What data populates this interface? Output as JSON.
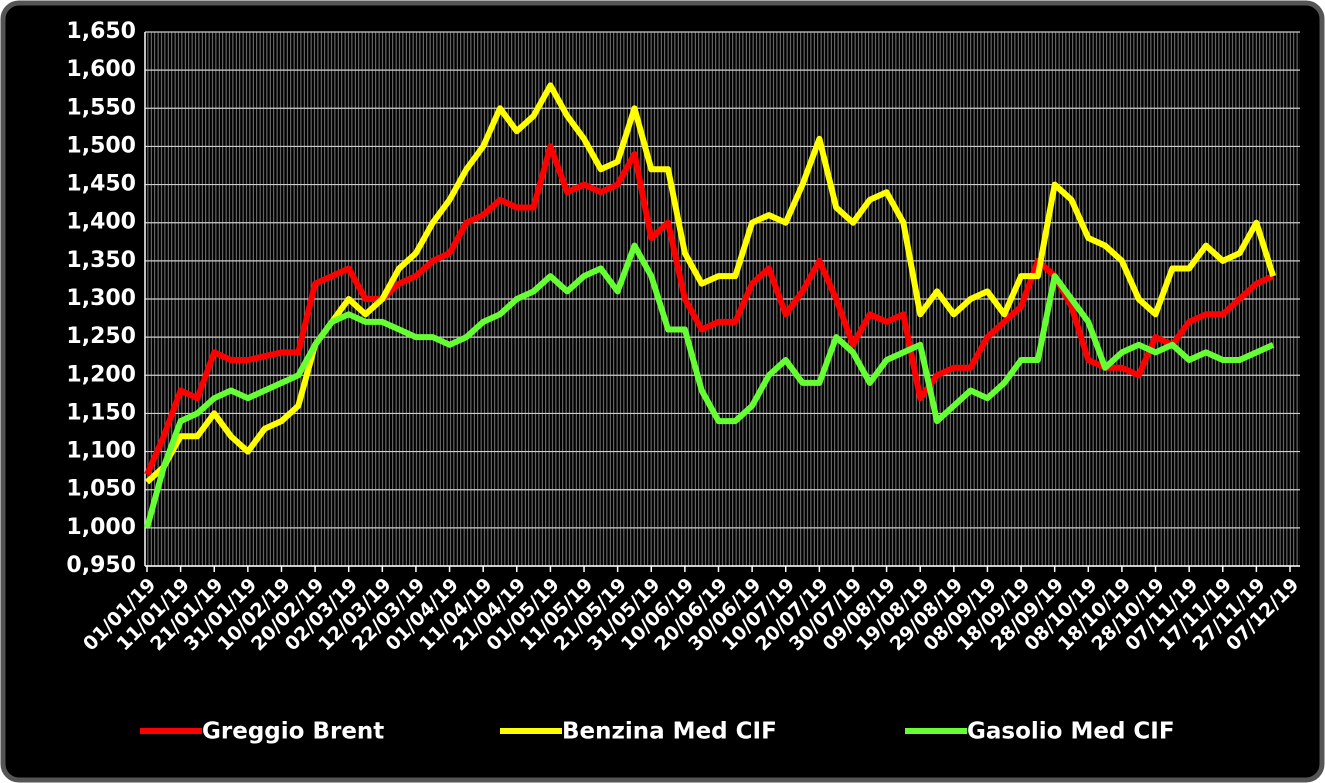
{
  "chart_data": {
    "type": "line",
    "categories": [
      "01/01/19",
      null,
      "11/01/19",
      null,
      "21/01/19",
      null,
      "31/01/19",
      null,
      "10/02/19",
      null,
      "20/02/19",
      null,
      "02/03/19",
      null,
      "12/03/19",
      null,
      "22/03/19",
      null,
      "01/04/19",
      null,
      "11/04/19",
      null,
      "21/04/19",
      null,
      "01/05/19",
      null,
      "11/05/19",
      null,
      "21/05/19",
      null,
      "31/05/19",
      null,
      "10/06/19",
      null,
      "20/06/19",
      null,
      "30/06/19",
      null,
      "10/07/19",
      null,
      "20/07/19",
      null,
      "30/07/19",
      null,
      "09/08/19",
      null,
      "19/08/19",
      null,
      "29/08/19",
      null,
      "08/09/19",
      null,
      "18/09/19",
      null,
      "28/09/19",
      null,
      "08/10/19",
      null,
      "18/10/19",
      null,
      "28/10/19",
      null,
      "07/11/19",
      null,
      "17/11/19",
      null,
      "27/11/19",
      null,
      "07/12/19"
    ],
    "series": [
      {
        "name": "Greggio Brent",
        "color": "#ff0000",
        "values": [
          1.07,
          1.12,
          1.18,
          1.17,
          1.23,
          1.22,
          1.22,
          1.225,
          1.23,
          1.23,
          1.32,
          1.33,
          1.34,
          1.3,
          1.3,
          1.32,
          1.33,
          1.35,
          1.36,
          1.4,
          1.41,
          1.43,
          1.42,
          1.42,
          1.5,
          1.44,
          1.45,
          1.44,
          1.45,
          1.49,
          1.38,
          1.4,
          1.3,
          1.26,
          1.27,
          1.27,
          1.32,
          1.34,
          1.28,
          1.31,
          1.35,
          1.3,
          1.24,
          1.28,
          1.27,
          1.28,
          1.17,
          1.2,
          1.21,
          1.21,
          1.25,
          1.27,
          1.29,
          1.35,
          1.33,
          1.29,
          1.22,
          1.21,
          1.21,
          1.2,
          1.25,
          1.24,
          1.27,
          1.28,
          1.28,
          1.3,
          1.32,
          1.33,
          null
        ]
      },
      {
        "name": "Benzina Med CIF",
        "color": "#ffff00",
        "values": [
          1.06,
          1.08,
          1.12,
          1.12,
          1.15,
          1.12,
          1.1,
          1.13,
          1.14,
          1.16,
          1.24,
          1.27,
          1.3,
          1.28,
          1.3,
          1.34,
          1.36,
          1.4,
          1.43,
          1.47,
          1.5,
          1.55,
          1.52,
          1.54,
          1.58,
          1.54,
          1.51,
          1.47,
          1.48,
          1.55,
          1.47,
          1.47,
          1.36,
          1.32,
          1.33,
          1.33,
          1.4,
          1.41,
          1.4,
          1.45,
          1.51,
          1.42,
          1.4,
          1.43,
          1.44,
          1.4,
          1.28,
          1.31,
          1.28,
          1.3,
          1.31,
          1.28,
          1.33,
          1.33,
          1.45,
          1.43,
          1.38,
          1.37,
          1.35,
          1.3,
          1.28,
          1.34,
          1.34,
          1.37,
          1.35,
          1.36,
          1.4,
          1.33,
          null
        ]
      },
      {
        "name": "Gasolio Med CIF",
        "color": "#66ff33",
        "values": [
          1.0,
          1.08,
          1.14,
          1.15,
          1.17,
          1.18,
          1.17,
          1.18,
          1.19,
          1.2,
          1.24,
          1.27,
          1.28,
          1.27,
          1.27,
          1.26,
          1.25,
          1.25,
          1.24,
          1.25,
          1.27,
          1.28,
          1.3,
          1.31,
          1.33,
          1.31,
          1.33,
          1.34,
          1.31,
          1.37,
          1.33,
          1.26,
          1.26,
          1.18,
          1.14,
          1.14,
          1.16,
          1.2,
          1.22,
          1.19,
          1.19,
          1.25,
          1.23,
          1.19,
          1.22,
          1.23,
          1.24,
          1.14,
          1.16,
          1.18,
          1.17,
          1.19,
          1.22,
          1.22,
          1.33,
          1.3,
          1.27,
          1.21,
          1.23,
          1.24,
          1.23,
          1.24,
          1.22,
          1.23,
          1.22,
          1.22,
          1.23,
          1.24,
          null
        ]
      }
    ],
    "ylim": [
      0.95,
      1.65
    ],
    "yticks": [
      {
        "value": 0.95,
        "label": "0,950"
      },
      {
        "value": 1.0,
        "label": "1,000"
      },
      {
        "value": 1.05,
        "label": "1,050"
      },
      {
        "value": 1.1,
        "label": "1,100"
      },
      {
        "value": 1.15,
        "label": "1,150"
      },
      {
        "value": 1.2,
        "label": "1,200"
      },
      {
        "value": 1.25,
        "label": "1,250"
      },
      {
        "value": 1.3,
        "label": "1,300"
      },
      {
        "value": 1.35,
        "label": "1,350"
      },
      {
        "value": 1.4,
        "label": "1,400"
      },
      {
        "value": 1.45,
        "label": "1,450"
      },
      {
        "value": 1.5,
        "label": "1,500"
      },
      {
        "value": 1.55,
        "label": "1,550"
      },
      {
        "value": 1.6,
        "label": "1,600"
      },
      {
        "value": 1.65,
        "label": "1,650"
      }
    ],
    "grid": true,
    "legend": "bottom"
  }
}
